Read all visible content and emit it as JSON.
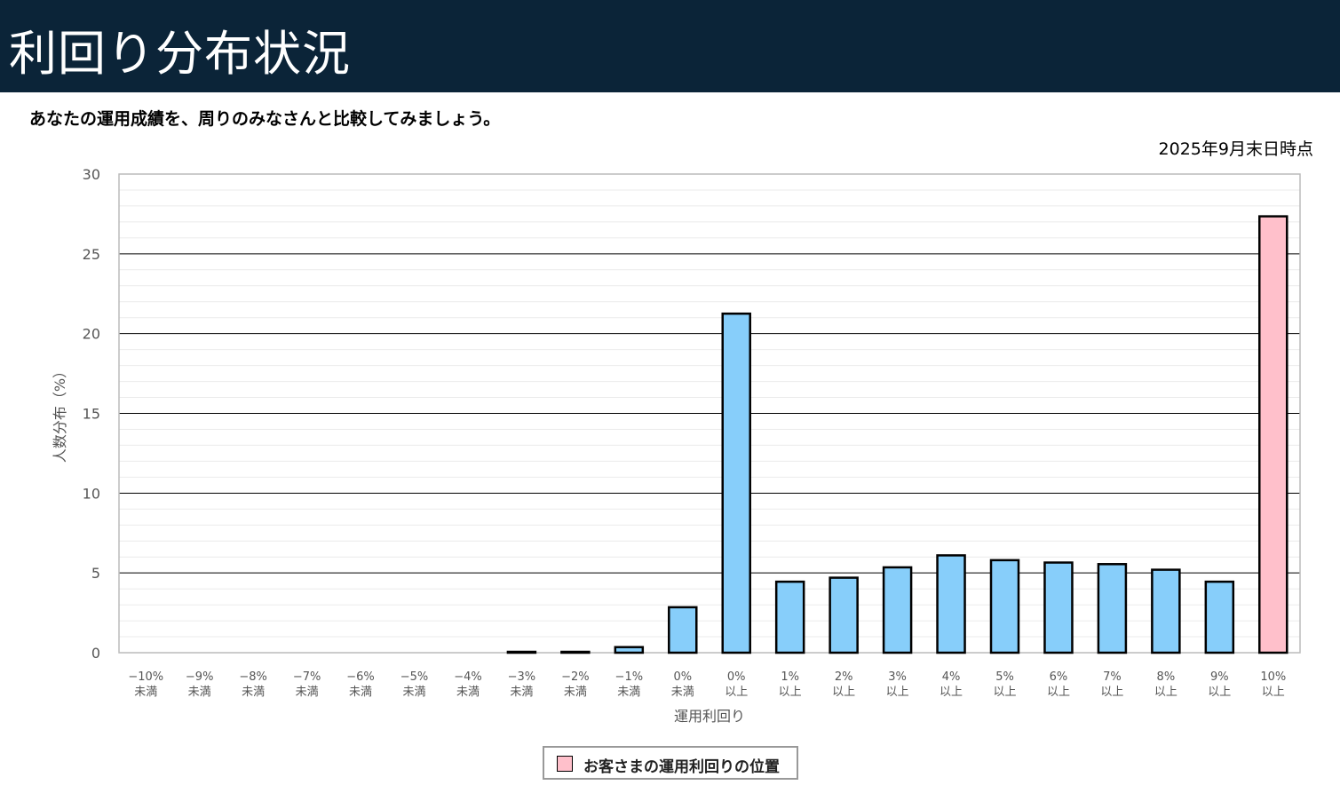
{
  "page": {
    "title": "利回り分布状況",
    "lead": "あなたの運用成績を、周りのみなさんと比較してみましょう。",
    "as_of": "2025年9月末日時点"
  },
  "legend": {
    "label": "お客さまの運用利回りの位置",
    "color": "#ffc0cb"
  },
  "colors": {
    "header_bg": "#0b2438",
    "bar_default": "#87cefa",
    "bar_highlight": "#ffc0cb",
    "bar_outline": "#000000"
  },
  "chart_data": {
    "type": "bar",
    "xlabel": "運用利回り",
    "ylabel": "人数分布（%）",
    "ylim": [
      0,
      30
    ],
    "yticks": [
      0,
      5,
      10,
      15,
      20,
      25,
      30
    ],
    "grid": "major lines every 5, minor lines every 1",
    "categories": [
      [
        "−10%",
        "未満"
      ],
      [
        "−9%",
        "未満"
      ],
      [
        "−8%",
        "未満"
      ],
      [
        "−7%",
        "未満"
      ],
      [
        "−6%",
        "未満"
      ],
      [
        "−5%",
        "未満"
      ],
      [
        "−4%",
        "未満"
      ],
      [
        "−3%",
        "未満"
      ],
      [
        "−2%",
        "未満"
      ],
      [
        "−1%",
        "未満"
      ],
      [
        "0%",
        "未満"
      ],
      [
        "0%",
        "以上"
      ],
      [
        "1%",
        "以上"
      ],
      [
        "2%",
        "以上"
      ],
      [
        "3%",
        "以上"
      ],
      [
        "4%",
        "以上"
      ],
      [
        "5%",
        "以上"
      ],
      [
        "6%",
        "以上"
      ],
      [
        "7%",
        "以上"
      ],
      [
        "8%",
        "以上"
      ],
      [
        "9%",
        "以上"
      ],
      [
        "10%",
        "以上"
      ]
    ],
    "values": [
      0,
      0,
      0,
      0,
      0,
      0,
      0,
      0.05,
      0.05,
      0.35,
      2.85,
      21.25,
      4.45,
      4.7,
      5.35,
      6.1,
      5.8,
      5.65,
      5.55,
      5.2,
      4.45,
      27.35
    ],
    "highlight_index": 21,
    "legend_position": "bottom-center"
  }
}
